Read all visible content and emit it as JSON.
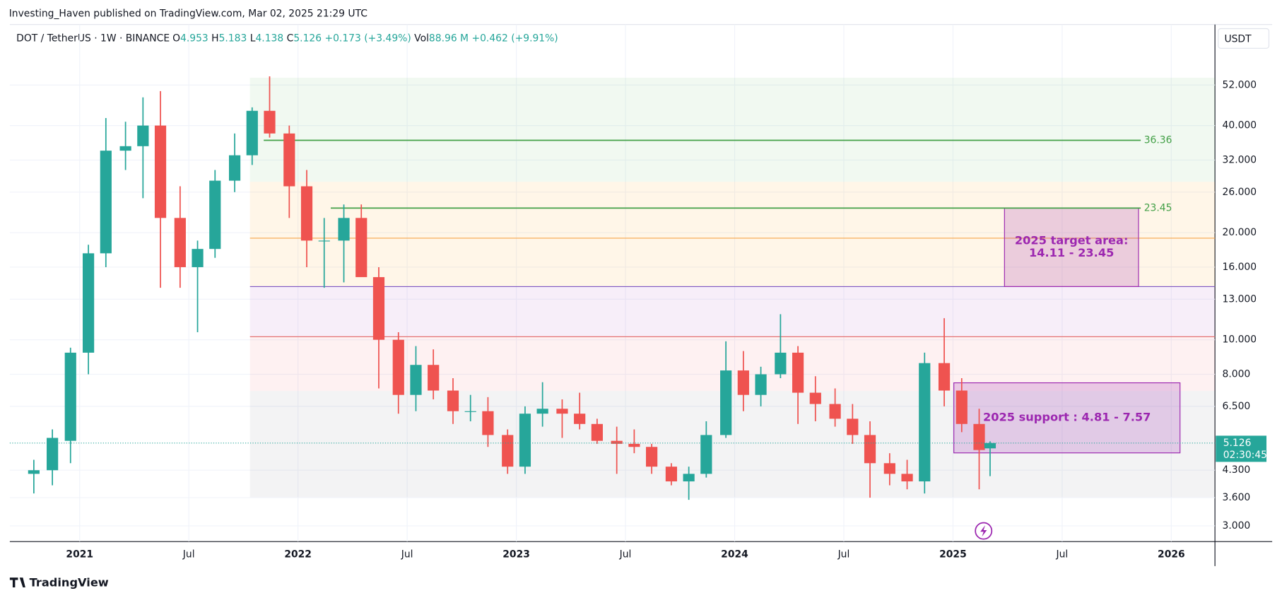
{
  "header": {
    "published": "Investing_Haven published on TradingView.com, Mar 02, 2025 21:29 UTC",
    "footer": "TradingView"
  },
  "chart_data": {
    "type": "candlestick",
    "symbol": "DOT / TetherUS · 1W · BINANCE",
    "legend": [
      {
        "label": "O",
        "value": 4.953
      },
      {
        "label": "H",
        "value": 5.183
      },
      {
        "label": "L",
        "value": 4.138
      },
      {
        "label": "C",
        "value": 5.126
      }
    ],
    "change": "+0.173 (+3.49%)",
    "volume": {
      "label": "Vol",
      "value": "88.96 M",
      "change": "+0.462 (+9.91%)"
    },
    "currency": "USDT",
    "log_scale": true,
    "grid": true,
    "up_color": "#26a69a",
    "down_color": "#ef5350",
    "x": [
      2020.79,
      2020.875,
      2020.958,
      2021.04,
      2021.12,
      2021.21,
      2021.29,
      2021.37,
      2021.46,
      2021.54,
      2021.62,
      2021.71,
      2021.79,
      2021.87,
      2021.96,
      2022.04,
      2022.12,
      2022.21,
      2022.29,
      2022.37,
      2022.46,
      2022.54,
      2022.62,
      2022.71,
      2022.79,
      2022.87,
      2022.96,
      2023.04,
      2023.12,
      2023.21,
      2023.29,
      2023.37,
      2023.46,
      2023.54,
      2023.62,
      2023.71,
      2023.79,
      2023.87,
      2023.96,
      2024.04,
      2024.12,
      2024.21,
      2024.29,
      2024.37,
      2024.46,
      2024.54,
      2024.62,
      2024.71,
      2024.79,
      2024.87,
      2024.96,
      2025.04,
      2025.12,
      2025.17
    ],
    "open": [
      4.2,
      4.3,
      5.2,
      9.2,
      17.5,
      34,
      35,
      40,
      22,
      16,
      18,
      28,
      33,
      44,
      38,
      27,
      19,
      19,
      22,
      15,
      10,
      7,
      8.5,
      7.2,
      6.3,
      6.3,
      5.4,
      4.4,
      6.2,
      6.4,
      6.2,
      5.8,
      5.2,
      5.1,
      5,
      4.4,
      4,
      4.2,
      5.4,
      8.2,
      7,
      8,
      9.2,
      7.1,
      6.6,
      6,
      5.4,
      4.5,
      4.2,
      4,
      8.6,
      7.2,
      5.8,
      4.953
    ],
    "high": [
      4.6,
      5.6,
      9.5,
      18.5,
      42,
      41,
      48,
      50,
      27,
      19,
      30,
      38,
      45,
      55,
      40,
      30,
      22,
      24,
      24,
      16,
      10.5,
      9.6,
      9.4,
      7.8,
      7,
      6.9,
      5.6,
      6.5,
      7.6,
      6.8,
      7.1,
      6,
      5.7,
      5.6,
      5.1,
      4.5,
      4.4,
      5.9,
      9.9,
      9.3,
      8.4,
      11.8,
      9.6,
      7.9,
      7.3,
      6.6,
      5.9,
      4.8,
      4.6,
      9.2,
      11.5,
      7.8,
      6.4,
      5.183
    ],
    "low": [
      3.7,
      3.9,
      4.5,
      8,
      16,
      30,
      25,
      14,
      14,
      10.5,
      17,
      26,
      31,
      37,
      22,
      16,
      14,
      14.5,
      15,
      7.3,
      6.2,
      6.3,
      6.8,
      5.8,
      5.9,
      5,
      4.2,
      4.2,
      5.7,
      5.3,
      5.6,
      5.1,
      4.2,
      4.8,
      4.2,
      3.9,
      3.55,
      4.1,
      5.3,
      6.3,
      6.5,
      7.8,
      5.8,
      5.9,
      5.7,
      5.1,
      3.6,
      3.9,
      3.8,
      3.7,
      6.5,
      5.5,
      3.8,
      4.138
    ],
    "close": [
      4.3,
      5.3,
      9.2,
      17.5,
      34,
      35,
      40,
      22,
      16,
      18,
      28,
      33,
      44,
      38,
      27,
      19,
      19,
      22,
      15,
      10,
      7,
      8.5,
      7.2,
      6.3,
      6.3,
      5.4,
      4.4,
      6.2,
      6.4,
      6.2,
      5.8,
      5.2,
      5.1,
      5,
      4.4,
      4,
      4.2,
      5.4,
      8.2,
      7,
      8,
      9.2,
      7.1,
      6.6,
      6,
      5.4,
      4.5,
      4.2,
      4,
      8.6,
      7.2,
      5.8,
      4.9,
      5.126
    ],
    "xlim": [
      2020.68,
      2026.2
    ],
    "ylim": [
      2.71,
      76.9
    ],
    "xticks": [
      2021,
      {
        "value": 2021.5,
        "label": "Jul"
      },
      2022,
      {
        "value": 2022.5,
        "label": "Jul"
      },
      2023,
      {
        "value": 2023.5,
        "label": "Jul"
      },
      2024,
      {
        "value": 2024.5,
        "label": "Jul"
      },
      2025,
      {
        "value": 2025.5,
        "label": "Jul"
      },
      2026
    ],
    "yticks": [
      {
        "value": 3,
        "label": "3.000"
      },
      {
        "value": 3.6,
        "label": "3.600"
      },
      {
        "value": 4.3,
        "label": "4.300"
      },
      {
        "value": 6.5,
        "label": "6.500"
      },
      {
        "value": 8,
        "label": "8.000"
      },
      {
        "value": 10,
        "label": "10.000"
      },
      {
        "value": 13,
        "label": "13.000"
      },
      {
        "value": 16,
        "label": "16.000"
      },
      {
        "value": 20,
        "label": "20.000"
      },
      {
        "value": 26,
        "label": "26.000"
      },
      {
        "value": 32,
        "label": "32.000"
      },
      {
        "value": 40,
        "label": "40.000"
      },
      {
        "value": 52,
        "label": "52.000"
      }
    ],
    "zones": [
      {
        "from": 54.5,
        "to": 27.8,
        "color": "rgba(76,175,80,0.08)"
      },
      {
        "from": 27.8,
        "to": 14.11,
        "color": "rgba(255,152,0,0.09)"
      },
      {
        "from": 14.11,
        "to": 10.2,
        "color": "rgba(156,39,176,0.08)"
      },
      {
        "from": 10.2,
        "to": 7.18,
        "color": "rgba(242,54,69,0.07)"
      },
      {
        "from": 7.18,
        "to": 3.61,
        "color": "rgba(120,123,134,0.09)"
      }
    ],
    "zone_x": [
      2021.78,
      2026.2
    ],
    "zone_lines": [
      {
        "value": 19.3,
        "color": "#f5a54a"
      },
      {
        "value": 14.11,
        "color": "#7e57c2"
      },
      {
        "value": 10.2,
        "color": "#e57373"
      }
    ],
    "levels": [
      {
        "value": 36.36,
        "x": [
          2021.843,
          2025.86
        ],
        "color": "#43a047"
      },
      {
        "value": 23.45,
        "x": [
          2022.15,
          2025.86
        ],
        "color": "#43a047"
      }
    ],
    "boxes": [
      {
        "text": [
          "2025 target area:",
          "14.11 - 23.45"
        ],
        "low": 14.11,
        "high": 23.45,
        "x": [
          2025.236,
          2025.85
        ]
      },
      {
        "text": [
          "2025 support : 4.81 - 7.57"
        ],
        "low": 4.81,
        "high": 7.57,
        "x": [
          2025.004,
          2026.04
        ]
      }
    ],
    "last": {
      "value": 5.126,
      "countdown": "02:30:45"
    }
  }
}
